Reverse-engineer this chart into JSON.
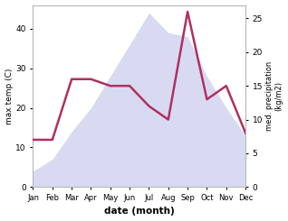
{
  "months": [
    "Jan",
    "Feb",
    "Mar",
    "Apr",
    "May",
    "Jun",
    "Jul",
    "Aug",
    "Sep",
    "Oct",
    "Nov",
    "Dec"
  ],
  "max_temp": [
    4,
    7,
    14,
    20,
    28,
    36,
    44,
    39,
    38,
    28,
    20,
    13
  ],
  "precipitation": [
    7,
    7,
    16,
    16,
    15,
    15,
    12,
    10,
    26,
    13,
    15,
    8
  ],
  "temp_color": "#b03060",
  "precip_fill_color": "#b8bce8",
  "ylabel_left": "max temp (C)",
  "ylabel_right": "med. precipitation\n(kg/m2)",
  "xlabel": "date (month)",
  "ylim_left": [
    0,
    46
  ],
  "ylim_right": [
    0,
    27
  ],
  "yticks_left": [
    0,
    10,
    20,
    30,
    40
  ],
  "yticks_right": [
    0,
    5,
    10,
    15,
    20,
    25
  ],
  "bg_color": "#ffffff",
  "spine_color": "#bbbbbb",
  "precip_alpha": 0.55
}
